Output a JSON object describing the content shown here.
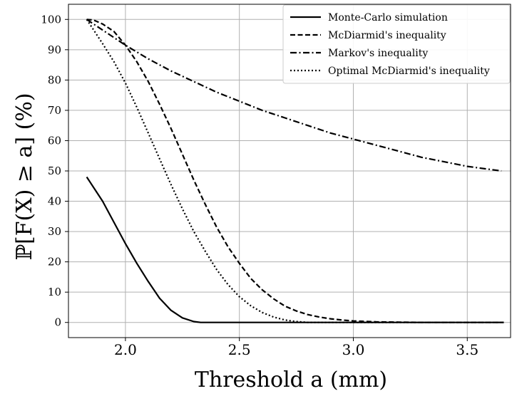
{
  "chart_data": {
    "type": "line",
    "title": "",
    "xlabel": "Threshold a (mm)",
    "ylabel": "ℙ[F(X) ≥ a] (%)",
    "xlim": [
      1.75,
      3.69
    ],
    "ylim": [
      -5,
      105
    ],
    "xticks": [
      2.0,
      2.5,
      3.0,
      3.5
    ],
    "xtick_labels": [
      "2.0",
      "2.5",
      "3.0",
      "3.5"
    ],
    "yticks": [
      0,
      10,
      20,
      30,
      40,
      50,
      60,
      70,
      80,
      90,
      100
    ],
    "ytick_labels": [
      "0",
      "10",
      "20",
      "30",
      "40",
      "50",
      "60",
      "70",
      "80",
      "90",
      "100"
    ],
    "grid": true,
    "legend_position": "top-right",
    "series": [
      {
        "name": "Monte-Carlo simulation",
        "style": "solid",
        "x": [
          1.83,
          1.9,
          2.0,
          2.05,
          2.1,
          2.15,
          2.2,
          2.25,
          2.3,
          2.33,
          2.4,
          2.6,
          3.0,
          3.4,
          3.66
        ],
        "y": [
          48,
          40,
          26,
          19.5,
          13.5,
          8,
          4,
          1.5,
          0.3,
          0,
          0,
          0,
          0,
          0,
          0
        ]
      },
      {
        "name": "McDiarmid's inequality",
        "style": "dashed",
        "x": [
          1.83,
          1.86,
          1.9,
          1.95,
          2.0,
          2.05,
          2.1,
          2.15,
          2.2,
          2.25,
          2.3,
          2.35,
          2.4,
          2.45,
          2.5,
          2.55,
          2.6,
          2.65,
          2.7,
          2.75,
          2.8,
          2.85,
          2.9,
          2.95,
          3.0,
          3.1,
          3.2,
          3.3,
          3.4,
          3.5,
          3.66
        ],
        "y": [
          100,
          99.8,
          98.5,
          96,
          91.5,
          86,
          79.5,
          72,
          64,
          55.5,
          47,
          39,
          31.5,
          25,
          19.5,
          14.5,
          10.8,
          7.8,
          5.4,
          3.8,
          2.6,
          1.8,
          1.2,
          0.8,
          0.5,
          0.2,
          0.1,
          0,
          0,
          0,
          0
        ]
      },
      {
        "name": "Markov's inequality",
        "style": "dashdot",
        "x": [
          1.83,
          1.9,
          2.0,
          2.1,
          2.2,
          2.3,
          2.4,
          2.5,
          2.6,
          2.7,
          2.8,
          2.9,
          3.0,
          3.1,
          3.2,
          3.3,
          3.4,
          3.5,
          3.65
        ],
        "y": [
          100,
          96.5,
          91.5,
          87,
          83,
          79.5,
          76,
          73,
          70,
          67.5,
          65,
          62.5,
          60.5,
          58.5,
          56.5,
          54.5,
          53,
          51.5,
          50
        ]
      },
      {
        "name": "Optimal McDiarmid's inequality",
        "style": "dotted",
        "x": [
          1.83,
          1.9,
          1.95,
          2.0,
          2.05,
          2.1,
          2.15,
          2.2,
          2.25,
          2.3,
          2.35,
          2.4,
          2.45,
          2.5,
          2.55,
          2.6,
          2.65,
          2.7,
          2.75,
          2.8,
          2.9,
          3.0,
          3.3,
          3.66
        ],
        "y": [
          100,
          92,
          86,
          79,
          71,
          62.5,
          54,
          45.5,
          37.5,
          30,
          23.5,
          17.5,
          12.5,
          8.5,
          5.5,
          3.3,
          1.8,
          0.8,
          0.3,
          0,
          0,
          0,
          0,
          0
        ]
      }
    ]
  }
}
